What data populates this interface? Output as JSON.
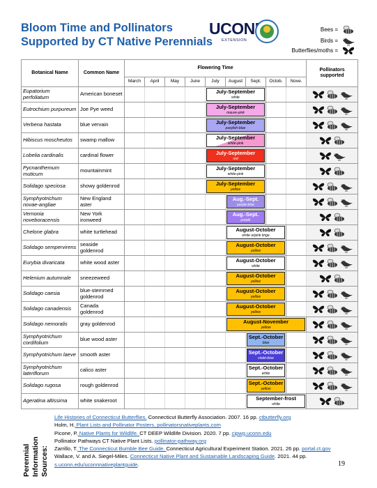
{
  "header": {
    "title_line1": "Bloom Time and Pollinators",
    "title_line2": "Supported by CT Native Perennials",
    "logo": "UCONN",
    "logo_sub": "EXTENSION"
  },
  "legend": [
    "Bees =",
    "Birds =",
    "Butterflies/moths ="
  ],
  "table": {
    "columns": [
      "Botanical Name",
      "Common Name",
      "Flowering Time",
      "Pollinators supported"
    ],
    "months": [
      "March",
      "April",
      "May",
      "June",
      "July",
      "August",
      "Sept.",
      "Octob.",
      "Nove."
    ],
    "rows": [
      {
        "botanical": "Eupatorium perfoliatum",
        "common": "American boneset",
        "bloom": "July-September",
        "bloom_color": "white"
      },
      {
        "botanical": "Eutrochium purpureum",
        "common": "Joe Pye weed",
        "bloom": "July-September",
        "bloom_color": "mauve-pink"
      },
      {
        "botanical": "Verbena hastata",
        "common": "blue vervain",
        "bloom": "July-September",
        "bloom_color": "purplish-blue"
      },
      {
        "botanical": "Hibiscus moscheutos",
        "common": "swamp mallow",
        "bloom": "July-September",
        "bloom_color": "white-pink"
      },
      {
        "botanical": "Lobelia cardinalis",
        "common": "cardinal flower",
        "bloom": "July-September",
        "bloom_color": "red"
      },
      {
        "botanical": "Pycnanthemum muticum",
        "common": "mountainmint",
        "bloom": "July-September",
        "bloom_color": "white-pink"
      },
      {
        "botanical": "Solidago speciosa",
        "common": "showy goldenrod",
        "bloom": "July-September",
        "bloom_color": "yellow"
      },
      {
        "botanical": "Symphyotrichum novae-angliae",
        "common": "New England aster",
        "bloom": "Aug.-Sept.",
        "bloom_color": "purple-blue"
      },
      {
        "botanical": "Vernonia noveboracensis",
        "common": "New York ironweed",
        "bloom": "Aug.-Sept.",
        "bloom_color": "purple"
      },
      {
        "botanical": "Chelone glabra",
        "common": "white turtlehead",
        "bloom": "August-October",
        "bloom_color": "white w/pink tinge"
      },
      {
        "botanical": "Solidago sempervirens",
        "common": "seaside goldenrod",
        "bloom": "August-October",
        "bloom_color": "yellow"
      },
      {
        "botanical": "Eurybia divaricata",
        "common": "white wood aster",
        "bloom": "August-October",
        "bloom_color": "white"
      },
      {
        "botanical": "Helenium autumnale",
        "common": "sneezeweed",
        "bloom": "August-October",
        "bloom_color": "yellow"
      },
      {
        "botanical": "Solidago caesia",
        "common": "blue-stemmed goldenrod",
        "bloom": "August-October",
        "bloom_color": "yellow"
      },
      {
        "botanical": "Solidago canadensis",
        "common": "Canada goldenrod",
        "bloom": "August-October",
        "bloom_color": "yellow"
      },
      {
        "botanical": "Solidago nemoralis",
        "common": "gray goldenrod",
        "bloom": "August-November",
        "bloom_color": "yellow"
      },
      {
        "botanical": "Symphyotrichum cordifolium",
        "common": "blue wood aster",
        "bloom": "Sept.-October",
        "bloom_color": "blue"
      },
      {
        "botanical": "Symphyotrichum laeve",
        "common": "smooth aster",
        "bloom": "Sept.-October",
        "bloom_color": "violet-blue"
      },
      {
        "botanical": "Symphyotrichum lateriflorum",
        "common": "calico aster",
        "bloom": "Sept.-October",
        "bloom_color": "white"
      },
      {
        "botanical": "Solidago rugosa",
        "common": "rough goldenrod",
        "bloom": "Sept.-October",
        "bloom_color": "yellow"
      },
      {
        "botanical": "Ageratina altissima",
        "common": "white snakeroot",
        "bloom": "September-frost",
        "bloom_color": "white"
      }
    ]
  },
  "sources_heading": "Perennial Information Sources:",
  "sources": [
    [
      {
        "text": "Life Histories of Connecticut Butterflies.",
        "link": true
      },
      {
        "text": " Connecticut Butterfly Association. 2007. 16 pp. ",
        "link": false
      },
      {
        "text": "ctbutterfly.org",
        "link": true
      }
    ],
    [
      {
        "text": "Holm, H.",
        "link": false
      },
      {
        "text": " Plant Lists and Pollinator Posters, pollinatorsnativeplants.com",
        "link": true
      }
    ],
    [
      {
        "text": "Picone, P.",
        "link": false
      },
      {
        "text": " Native Plants for Wildlife. ",
        "link": true
      },
      {
        "text": "CT DEEP Wildlife Division. 2020. 7 pp. ",
        "link": false
      },
      {
        "text": "cipwg.uconn.edu",
        "link": true
      }
    ],
    [
      {
        "text": "Pollinator Pathways CT Native Plant Lists. ",
        "link": false
      },
      {
        "text": "pollinator-pathway.org",
        "link": true
      }
    ],
    [
      {
        "text": "Zarrillo, T.",
        "link": false
      },
      {
        "text": " The Connecticut Bumble Bee Guide. ",
        "link": true
      },
      {
        "text": "Connecticut Agricultural Experiment Station. 2021. 26 pp. ",
        "link": false
      },
      {
        "text": "portal.ct.gov",
        "link": true
      }
    ],
    [
      {
        "text": "Wallace, V. and A. Siegel-Miles. ",
        "link": false
      },
      {
        "text": "Connecticut Native Plant and Sustainable Landscaping Guide",
        "link": true
      },
      {
        "text": ". 2021. 44 pp.",
        "link": false
      }
    ],
    [
      {
        "text": "s.uconn.edu/uconnnativeplantguide",
        "link": true
      },
      {
        "text": ".",
        "link": false
      }
    ]
  ],
  "page_number": "19"
}
